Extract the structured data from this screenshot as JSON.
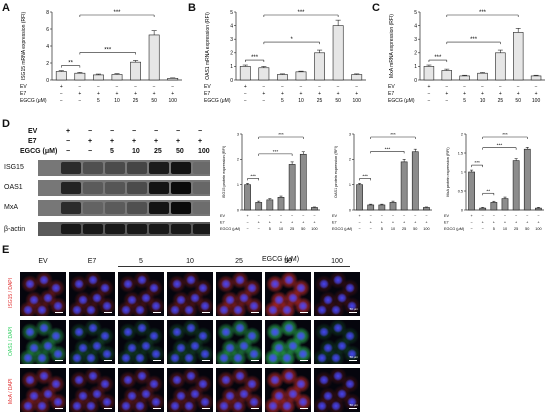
{
  "panels": {
    "A": "A",
    "B": "B",
    "C": "C",
    "D": "D",
    "E": "E"
  },
  "row_labels": {
    "ev": "EV",
    "e7": "E7",
    "egcg": "EGCG (μM)"
  },
  "conditions": {
    "ev": [
      "+",
      "−",
      "−",
      "−",
      "−",
      "−",
      "−"
    ],
    "e7": [
      "−",
      "+",
      "+",
      "+",
      "+",
      "+",
      "+"
    ],
    "egcg": [
      "−",
      "−",
      "5",
      "10",
      "25",
      "50",
      "100"
    ]
  },
  "colors": {
    "bar_fill": "#e6e6e6",
    "bar_stroke": "#222222",
    "gray_bar": "#8c8c8c"
  },
  "chart_data": [
    {
      "id": "A",
      "type": "bar",
      "ylabel": "ISG15 mRNA expression (RFI)",
      "ylim": [
        0,
        8
      ],
      "categories": [
        "EV",
        "E7",
        "E7+EGCG 5",
        "E7+EGCG 10",
        "E7+EGCG 25",
        "E7+EGCG 50",
        "E7+EGCG 100"
      ],
      "values": [
        1.0,
        0.8,
        0.6,
        0.65,
        2.1,
        5.3,
        0.2
      ],
      "errors": [
        0.1,
        0.1,
        0.1,
        0.1,
        0.2,
        0.5,
        0.05
      ],
      "significance": [
        {
          "a": 0,
          "b": 1,
          "label": "**"
        },
        {
          "a": 1,
          "b": 4,
          "label": "***"
        },
        {
          "a": 1,
          "b": 5,
          "label": "***"
        }
      ]
    },
    {
      "id": "B",
      "type": "bar",
      "ylabel": "OAS1 mRNA expression (RFI)",
      "ylim": [
        0,
        5
      ],
      "categories": [
        "EV",
        "E7",
        "E7+EGCG 5",
        "E7+EGCG 10",
        "E7+EGCG 25",
        "E7+EGCG 50",
        "E7+EGCG 100"
      ],
      "values": [
        1.0,
        0.9,
        0.4,
        0.6,
        2.0,
        4.0,
        0.4
      ],
      "errors": [
        0.1,
        0.1,
        0.05,
        0.05,
        0.2,
        0.4,
        0.05
      ],
      "significance": [
        {
          "a": 0,
          "b": 1,
          "label": "***"
        },
        {
          "a": 1,
          "b": 4,
          "label": "*"
        },
        {
          "a": 1,
          "b": 5,
          "label": "***"
        }
      ]
    },
    {
      "id": "C",
      "type": "bar",
      "ylabel": "MxA mRNA expression (RFI)",
      "ylim": [
        0,
        5
      ],
      "categories": [
        "EV",
        "E7",
        "E7+EGCG 5",
        "E7+EGCG 10",
        "E7+EGCG 25",
        "E7+EGCG 50",
        "E7+EGCG 100"
      ],
      "values": [
        1.0,
        0.7,
        0.3,
        0.5,
        2.0,
        3.5,
        0.3
      ],
      "errors": [
        0.1,
        0.1,
        0.05,
        0.05,
        0.2,
        0.3,
        0.05
      ],
      "significance": [
        {
          "a": 0,
          "b": 1,
          "label": "***"
        },
        {
          "a": 1,
          "b": 4,
          "label": "***"
        },
        {
          "a": 1,
          "b": 5,
          "label": "***"
        }
      ]
    },
    {
      "id": "D1",
      "type": "bar",
      "ylabel": "ISG15 protein expression (RFI)",
      "ylim": [
        0,
        3
      ],
      "categories": [
        "EV",
        "E7",
        "E7+EGCG 5",
        "E7+EGCG 10",
        "E7+EGCG 25",
        "E7+EGCG 50",
        "E7+EGCG 100"
      ],
      "values": [
        1.0,
        0.3,
        0.4,
        0.5,
        1.8,
        2.2,
        0.1
      ],
      "errors": [
        0.05,
        0.05,
        0.05,
        0.05,
        0.1,
        0.1,
        0.02
      ],
      "significance": [
        {
          "a": 0,
          "b": 1,
          "label": "***"
        },
        {
          "a": 1,
          "b": 4,
          "label": "***"
        },
        {
          "a": 1,
          "b": 5,
          "label": "***"
        }
      ]
    },
    {
      "id": "D2",
      "type": "bar",
      "ylabel": "OAS1 protein expression (RFI)",
      "ylim": [
        0,
        3
      ],
      "categories": [
        "EV",
        "E7",
        "E7+EGCG 5",
        "E7+EGCG 10",
        "E7+EGCG 25",
        "E7+EGCG 50",
        "E7+EGCG 100"
      ],
      "values": [
        1.0,
        0.2,
        0.2,
        0.3,
        1.9,
        2.3,
        0.1
      ],
      "errors": [
        0.05,
        0.03,
        0.03,
        0.05,
        0.1,
        0.1,
        0.02
      ],
      "significance": [
        {
          "a": 0,
          "b": 1,
          "label": "***"
        },
        {
          "a": 1,
          "b": 4,
          "label": "***"
        },
        {
          "a": 1,
          "b": 5,
          "label": "***"
        }
      ]
    },
    {
      "id": "D3",
      "type": "bar",
      "ylabel": "MxA protein expression (RFI)",
      "ylim": [
        0,
        2.0
      ],
      "categories": [
        "EV",
        "E7",
        "E7+EGCG 5",
        "E7+EGCG 10",
        "E7+EGCG 25",
        "E7+EGCG 50",
        "E7+EGCG 100"
      ],
      "values": [
        1.0,
        0.05,
        0.2,
        0.3,
        1.3,
        1.6,
        0.05
      ],
      "errors": [
        0.05,
        0.02,
        0.03,
        0.04,
        0.05,
        0.05,
        0.02
      ],
      "significance": [
        {
          "a": 0,
          "b": 1,
          "label": "***"
        },
        {
          "a": 1,
          "b": 2,
          "label": "**"
        },
        {
          "a": 1,
          "b": 4,
          "label": "***"
        },
        {
          "a": 1,
          "b": 5,
          "label": "***"
        }
      ]
    }
  ],
  "blot": {
    "rows": [
      {
        "label": "ISG15",
        "intensities": [
          0.8,
          0.5,
          0.55,
          0.6,
          0.9,
          0.95,
          0.2
        ]
      },
      {
        "label": "OAS1",
        "intensities": [
          0.85,
          0.4,
          0.45,
          0.55,
          0.95,
          1.0,
          0.25
        ]
      },
      {
        "label": "MxA",
        "intensities": [
          0.8,
          0.3,
          0.4,
          0.5,
          0.95,
          1.0,
          0.15
        ]
      },
      {
        "label": "β-actin",
        "intensities": [
          0.9,
          0.9,
          0.9,
          0.9,
          0.9,
          0.9,
          0.9
        ]
      }
    ]
  },
  "micro": {
    "egcg_header": "EGCG (μM)",
    "columns": [
      "EV",
      "E7",
      "5",
      "10",
      "25",
      "50",
      "100"
    ],
    "rows": [
      {
        "stain": "ISG15 / DAPI",
        "signal": "#e03030",
        "levels": [
          0.4,
          0.25,
          0.25,
          0.3,
          0.6,
          0.9,
          0.1
        ]
      },
      {
        "stain": "OAS1 / DAPI",
        "signal": "#30d060",
        "levels": [
          0.6,
          0.2,
          0.15,
          0.2,
          0.7,
          0.95,
          0.1
        ]
      },
      {
        "stain": "MxA / DAPI",
        "signal": "#e03030",
        "levels": [
          0.5,
          0.3,
          0.3,
          0.3,
          0.5,
          0.85,
          0.1
        ]
      }
    ],
    "scale_label": "50 μm"
  }
}
